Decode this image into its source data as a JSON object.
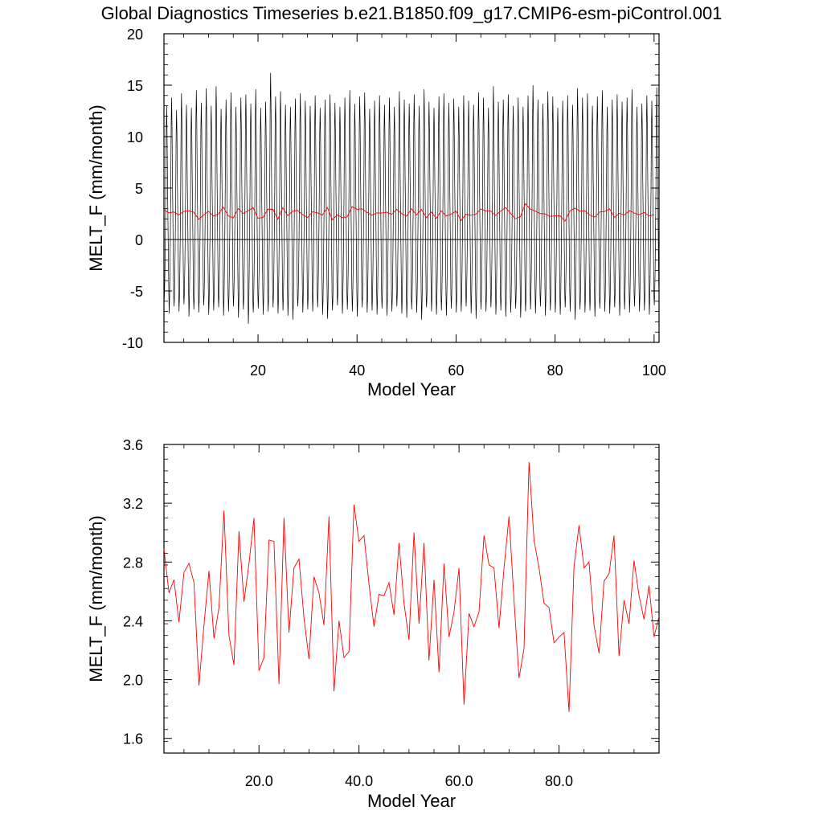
{
  "title": "Global Diagnostics Timeseries b.e21.B1850.f09_g17.CMIP6-esm-piControl.001",
  "colors": {
    "monthly": "#000000",
    "annual": "#ff0000",
    "zero_line": "#000000"
  },
  "chart_data": [
    {
      "type": "line",
      "xlabel": "Model Year",
      "ylabel": "MELT_F (mm/month)",
      "xlim": [
        1,
        101
      ],
      "ylim": [
        -10,
        20
      ],
      "xticks": [
        20,
        40,
        60,
        80,
        100
      ],
      "xtick_labels": [
        "20",
        "40",
        "60",
        "80",
        "100"
      ],
      "yticks": [
        -10,
        -5,
        0,
        5,
        10,
        15,
        20
      ],
      "ytick_labels": [
        "-10",
        "-5",
        "0",
        "5",
        "10",
        "15",
        "20"
      ],
      "reference_line": 0,
      "series": [
        {
          "kind": "monthly",
          "x_start": 1,
          "monthly_cycle": [
            -5.5,
            -4.5,
            -2.5,
            0.5,
            4.5,
            10.5,
            13.0,
            10.5,
            6.0,
            2.5,
            -1.0,
            -4.0
          ],
          "summer_peak": [
            13.0,
            13.8,
            12.6,
            14.2,
            13.1,
            12.8,
            14.5,
            13.3,
            14.7,
            13.0,
            14.9,
            12.7,
            13.6,
            14.3,
            12.9,
            13.8,
            14.1,
            13.2,
            14.6,
            12.8,
            13.4,
            16.2,
            13.9,
            14.4,
            13.1,
            12.9,
            13.7,
            14.2,
            13.5,
            13.0,
            14.0,
            12.8,
            13.6,
            14.1,
            13.3,
            12.9,
            13.8,
            14.5,
            13.2,
            13.9,
            14.3,
            12.7,
            13.5,
            14.0,
            13.1,
            13.8,
            12.9,
            14.4,
            13.6,
            13.2,
            14.1,
            13.0,
            14.6,
            13.4,
            12.8,
            13.9,
            14.2,
            13.3,
            13.7,
            12.9,
            14.0,
            13.5,
            13.1,
            14.3,
            13.8,
            12.8,
            14.9,
            13.4,
            13.6,
            14.1,
            13.0,
            13.8,
            12.9,
            14.0,
            15.0,
            13.6,
            13.2,
            14.4,
            13.9,
            12.8,
            13.5,
            14.0,
            13.1,
            14.7,
            13.8,
            14.2,
            13.0,
            13.9,
            14.5,
            12.9,
            13.6,
            14.1,
            13.4,
            13.8,
            14.6,
            12.9,
            13.2,
            14.0,
            13.5,
            14.8,
            13.2
          ],
          "winter_trough": [
            -6.0,
            -7.2,
            -6.5,
            -7.0,
            -6.3,
            -7.5,
            -6.8,
            -7.1,
            -6.4,
            -7.3,
            -6.9,
            -6.6,
            -7.4,
            -7.0,
            -6.5,
            -7.6,
            -6.8,
            -8.2,
            -7.1,
            -6.7,
            -7.3,
            -7.0,
            -6.6,
            -7.2,
            -6.9,
            -7.4,
            -7.8,
            -6.5,
            -7.1,
            -6.8,
            -7.0,
            -6.6,
            -7.3,
            -7.7,
            -6.9,
            -6.4,
            -7.2,
            -6.8,
            -7.0,
            -7.5,
            -6.6,
            -7.1,
            -6.9,
            -7.3,
            -6.7,
            -7.4,
            -7.0,
            -6.5,
            -7.2,
            -7.6,
            -6.8,
            -7.1,
            -7.8,
            -6.6,
            -7.0,
            -7.3,
            -6.9,
            -7.4,
            -6.7,
            -7.1,
            -7.0,
            -6.5,
            -7.2,
            -7.7,
            -6.8,
            -7.0,
            -6.6,
            -7.3,
            -6.9,
            -7.5,
            -7.1,
            -6.7,
            -7.6,
            -7.0,
            -6.8,
            -7.2,
            -6.5,
            -7.4,
            -6.9,
            -7.1,
            -7.3,
            -6.6,
            -7.0,
            -7.8,
            -6.8,
            -7.1,
            -6.9,
            -7.5,
            -6.7,
            -7.0,
            -7.2,
            -6.6,
            -7.4,
            -6.8,
            -7.1,
            -6.5,
            -7.0,
            -6.9,
            -7.3,
            -6.4,
            -6.2
          ]
        },
        {
          "kind": "annual",
          "x": [
            1,
            2,
            3,
            4,
            5,
            6,
            7,
            8,
            9,
            10,
            11,
            12,
            13,
            14,
            15,
            16,
            17,
            18,
            19,
            20,
            21,
            22,
            23,
            24,
            25,
            26,
            27,
            28,
            29,
            30,
            31,
            32,
            33,
            34,
            35,
            36,
            37,
            38,
            39,
            40,
            41,
            42,
            43,
            44,
            45,
            46,
            47,
            48,
            49,
            50,
            51,
            52,
            53,
            54,
            55,
            56,
            57,
            58,
            59,
            60,
            61,
            62,
            63,
            64,
            65,
            66,
            67,
            68,
            69,
            70,
            71,
            72,
            73,
            74,
            75,
            76,
            77,
            78,
            79,
            80,
            81,
            82,
            83,
            84,
            85,
            86,
            87,
            88,
            89,
            90,
            91,
            92,
            93,
            94,
            95,
            96,
            97,
            98,
            99,
            100
          ],
          "values": [
            2.89,
            2.59,
            2.68,
            2.39,
            2.73,
            2.79,
            2.66,
            1.96,
            2.37,
            2.74,
            2.28,
            2.49,
            3.15,
            2.3,
            2.1,
            3.01,
            2.53,
            2.79,
            3.1,
            2.06,
            2.15,
            2.95,
            2.94,
            1.97,
            3.1,
            2.32,
            2.76,
            2.82,
            2.42,
            2.14,
            2.7,
            2.59,
            2.37,
            3.11,
            1.92,
            2.4,
            2.15,
            2.19,
            3.19,
            2.94,
            2.98,
            2.65,
            2.36,
            2.58,
            2.57,
            2.66,
            2.44,
            2.93,
            2.52,
            2.27,
            3.0,
            2.38,
            2.93,
            2.13,
            2.68,
            2.05,
            2.79,
            2.29,
            2.46,
            2.76,
            1.83,
            2.45,
            2.36,
            2.46,
            2.98,
            2.78,
            2.76,
            2.35,
            2.76,
            3.11,
            2.54,
            2.01,
            2.21,
            3.48,
            2.95,
            2.76,
            2.52,
            2.49,
            2.25,
            2.29,
            2.32,
            1.78,
            2.77,
            3.05,
            2.76,
            2.8,
            2.37,
            2.18,
            2.67,
            2.72,
            2.98,
            2.16,
            2.54,
            2.38,
            2.81,
            2.57,
            2.41,
            2.64,
            2.29,
            2.43
          ]
        }
      ]
    },
    {
      "type": "line",
      "xlabel": "Model Year",
      "ylabel": "MELT_F (mm/month)",
      "xlim": [
        1,
        100
      ],
      "ylim": [
        1.5,
        3.6
      ],
      "xticks": [
        20,
        40,
        60,
        80
      ],
      "xtick_labels": [
        "20.0",
        "40.0",
        "60.0",
        "80.0"
      ],
      "yticks": [
        1.6,
        2.0,
        2.4,
        2.8,
        3.2,
        3.6
      ],
      "ytick_labels": [
        "1.6",
        "2.0",
        "2.4",
        "2.8",
        "3.2",
        "3.6"
      ],
      "series": [
        {
          "kind": "annual",
          "x": [
            1,
            2,
            3,
            4,
            5,
            6,
            7,
            8,
            9,
            10,
            11,
            12,
            13,
            14,
            15,
            16,
            17,
            18,
            19,
            20,
            21,
            22,
            23,
            24,
            25,
            26,
            27,
            28,
            29,
            30,
            31,
            32,
            33,
            34,
            35,
            36,
            37,
            38,
            39,
            40,
            41,
            42,
            43,
            44,
            45,
            46,
            47,
            48,
            49,
            50,
            51,
            52,
            53,
            54,
            55,
            56,
            57,
            58,
            59,
            60,
            61,
            62,
            63,
            64,
            65,
            66,
            67,
            68,
            69,
            70,
            71,
            72,
            73,
            74,
            75,
            76,
            77,
            78,
            79,
            80,
            81,
            82,
            83,
            84,
            85,
            86,
            87,
            88,
            89,
            90,
            91,
            92,
            93,
            94,
            95,
            96,
            97,
            98,
            99,
            100
          ],
          "values": [
            2.89,
            2.59,
            2.68,
            2.39,
            2.73,
            2.79,
            2.66,
            1.96,
            2.37,
            2.74,
            2.28,
            2.49,
            3.15,
            2.3,
            2.1,
            3.01,
            2.53,
            2.79,
            3.1,
            2.06,
            2.15,
            2.95,
            2.94,
            1.97,
            3.1,
            2.32,
            2.76,
            2.82,
            2.42,
            2.14,
            2.7,
            2.59,
            2.37,
            3.11,
            1.92,
            2.4,
            2.15,
            2.19,
            3.19,
            2.94,
            2.98,
            2.65,
            2.36,
            2.58,
            2.57,
            2.66,
            2.44,
            2.93,
            2.52,
            2.27,
            3.0,
            2.38,
            2.93,
            2.13,
            2.68,
            2.05,
            2.79,
            2.29,
            2.46,
            2.76,
            1.83,
            2.45,
            2.36,
            2.46,
            2.98,
            2.78,
            2.76,
            2.35,
            2.76,
            3.11,
            2.54,
            2.01,
            2.21,
            3.48,
            2.95,
            2.76,
            2.52,
            2.49,
            2.25,
            2.29,
            2.32,
            1.78,
            2.77,
            3.05,
            2.76,
            2.8,
            2.37,
            2.18,
            2.67,
            2.72,
            2.98,
            2.16,
            2.54,
            2.38,
            2.81,
            2.57,
            2.41,
            2.64,
            2.29,
            2.43
          ]
        }
      ]
    }
  ]
}
